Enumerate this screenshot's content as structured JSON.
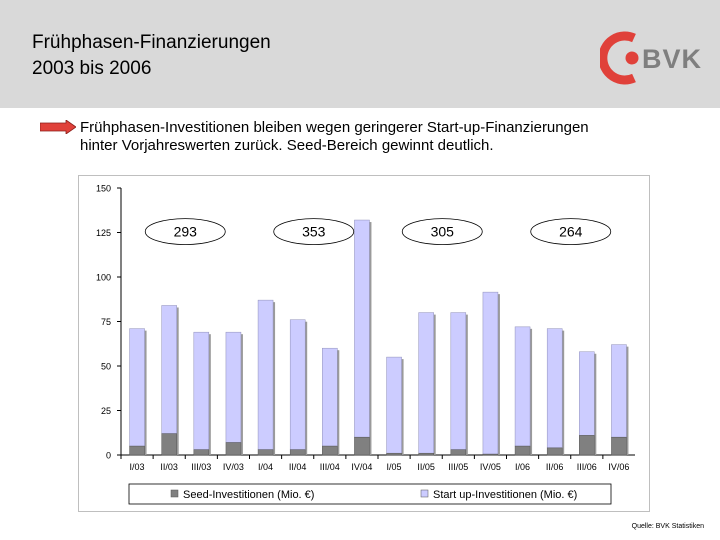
{
  "header": {
    "title_line1": "Frühphasen-Finanzierungen",
    "title_line2": "2003 bis 2006",
    "logo_text": "BVK",
    "background": "#d9d9d9"
  },
  "bullet": {
    "line1": "Frühphasen-Investitionen bleiben wegen geringerer Start-up-Finanzierungen",
    "line2": "hinter Vorjahreswerten zurück. Seed-Bereich gewinnt deutlich.",
    "arrow_color": "#e0413a"
  },
  "source": "Quelle: BVK Statistiken",
  "colors": {
    "seed": "#808080",
    "startup": "#ccccff",
    "logo": "#e0413a"
  },
  "chart_data": {
    "type": "bar",
    "stacked": true,
    "categories": [
      "I/03",
      "II/03",
      "III/03",
      "IV/03",
      "I/04",
      "II/04",
      "III/04",
      "IV/04",
      "I/05",
      "II/05",
      "III/05",
      "IV/05",
      "I/06",
      "II/06",
      "III/06",
      "IV/06"
    ],
    "series": [
      {
        "name": "Seed-Investitionen (Mio. €)",
        "color": "#808080",
        "values": [
          5,
          12,
          3,
          7,
          3,
          3,
          5,
          10,
          1,
          1,
          3,
          0.5,
          5,
          4,
          11,
          10
        ]
      },
      {
        "name": "Start up-Investitionen (Mio. €)",
        "color": "#ccccff",
        "values": [
          66,
          72,
          66,
          62,
          84,
          73,
          55,
          122,
          54,
          79,
          77,
          91,
          67,
          67,
          47,
          52
        ]
      }
    ],
    "totals": [
      71,
      84,
      69,
      69,
      87,
      76,
      60,
      132,
      55,
      80,
      80,
      91.5,
      72,
      71,
      58,
      62
    ],
    "ylim": [
      0,
      150
    ],
    "yticks": [
      0,
      25,
      50,
      75,
      100,
      125,
      150
    ],
    "grid": false,
    "legend_position": "bottom",
    "annotations": [
      {
        "text": "293",
        "year": "2003"
      },
      {
        "text": "353",
        "year": "2004"
      },
      {
        "text": "305",
        "year": "2005"
      },
      {
        "text": "264",
        "year": "2006"
      }
    ]
  }
}
